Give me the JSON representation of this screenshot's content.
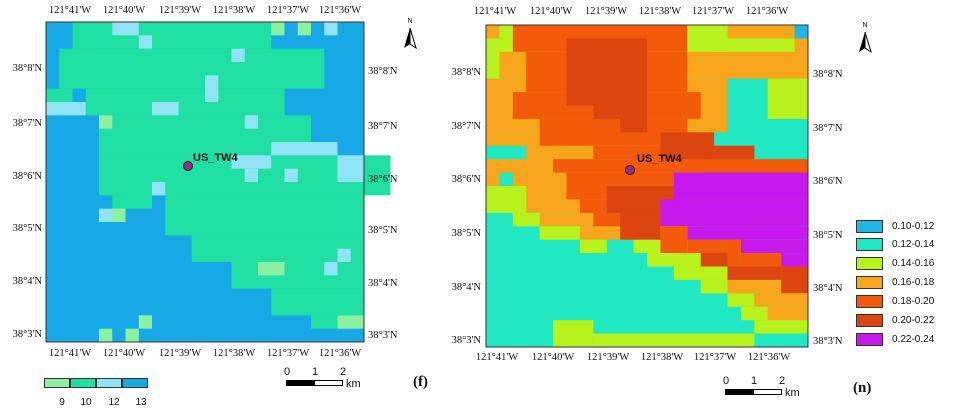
{
  "panels": [
    {
      "id": "f",
      "lon_labels": [
        "121°41'W",
        "121°40'W",
        "121°39'W",
        "121°38'W",
        "121°37'W",
        "121°36'W"
      ],
      "lat_labels": [
        "38°8'N",
        "38°7'N",
        "38°6'N",
        "38°5'N",
        "38°4'N",
        "38°3'N"
      ],
      "site": {
        "name": "US_TW4",
        "marker_color": "#9a2e86"
      },
      "north_letter": "N",
      "panel_tag": "(f)",
      "scalebar": {
        "ticks": [
          "0",
          "1",
          "2"
        ],
        "unit": "km"
      },
      "legend": {
        "classes": [
          {
            "label": "9",
            "color": "#8cf0a0"
          },
          {
            "label": "10",
            "color": "#1fe0a2"
          },
          {
            "label": "12",
            "color": "#8fe3f5"
          },
          {
            "label": "13",
            "color": "#17a9e6"
          }
        ]
      }
    },
    {
      "id": "n",
      "lon_labels": [
        "121°41'W",
        "121°40'W",
        "121°39'W",
        "121°38'W",
        "121°37'W",
        "121°36'W"
      ],
      "lat_labels": [
        "38°8'N",
        "38°7'N",
        "38°6'N",
        "38°5'N",
        "38°4'N",
        "38°3'N"
      ],
      "site": {
        "name": "US_TW4",
        "marker_color": "#9a2e86"
      },
      "north_letter": "N",
      "panel_tag": "(n)",
      "scalebar": {
        "ticks": [
          "0",
          "1",
          "2"
        ],
        "unit": "km"
      },
      "legend": {
        "classes": [
          {
            "label": "0.10-0.12",
            "color": "#1fb6ea"
          },
          {
            "label": "0.12-0.14",
            "color": "#1fe8c2"
          },
          {
            "label": "0.14-0.16",
            "color": "#b8f21c"
          },
          {
            "label": "0.16-0.18",
            "color": "#f7a51b"
          },
          {
            "label": "0.18-0.20",
            "color": "#f35b0b"
          },
          {
            "label": "0.20-0.22",
            "color": "#dd4510"
          },
          {
            "label": "0.22-0.24",
            "color": "#c719ee"
          }
        ]
      }
    }
  ]
}
